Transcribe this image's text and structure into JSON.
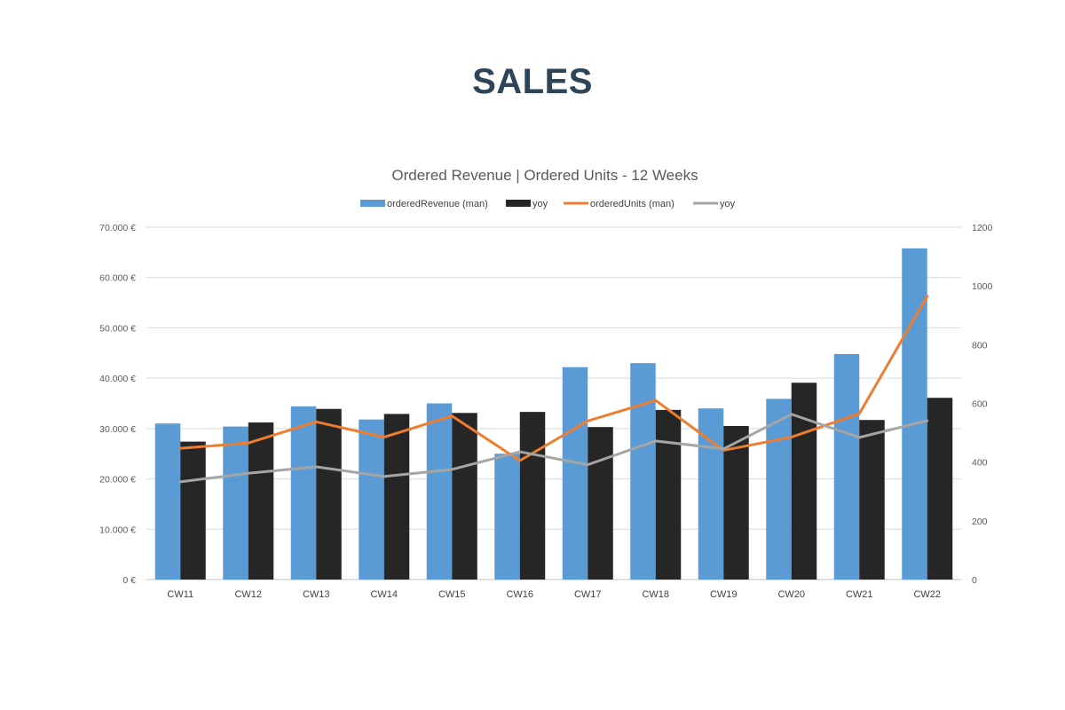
{
  "page": {
    "title": "SALES"
  },
  "chart_data": {
    "type": "bar",
    "title": "Ordered Revenue | Ordered Units - 12 Weeks",
    "categories": [
      "CW11",
      "CW12",
      "CW13",
      "CW14",
      "CW15",
      "CW16",
      "CW17",
      "CW18",
      "CW19",
      "CW20",
      "CW21",
      "CW22"
    ],
    "y_left": {
      "min": 0,
      "max": 70000,
      "step": 10000,
      "tick_labels": [
        "0 €",
        "10.000 €",
        "20.000 €",
        "30.000 €",
        "40.000 €",
        "50.000 €",
        "60.000 €",
        "70.000 €"
      ]
    },
    "y_right": {
      "min": 0,
      "max": 1200,
      "step": 200,
      "tick_labels": [
        "0",
        "200",
        "400",
        "600",
        "800",
        "1000",
        "1200"
      ]
    },
    "grid": true,
    "legend_position": "top",
    "series": [
      {
        "name": "orderedRevenue (man)",
        "kind": "bar",
        "axis": "left",
        "color": "#5b9bd5",
        "values": [
          31000,
          30400,
          34400,
          31800,
          35000,
          25000,
          42200,
          43000,
          34000,
          35900,
          44800,
          65800
        ]
      },
      {
        "name": "yoy",
        "kind": "bar",
        "axis": "left",
        "color": "#262626",
        "values": [
          27400,
          31200,
          33900,
          32900,
          33100,
          33300,
          30300,
          33700,
          30500,
          39100,
          31700,
          36100
        ]
      },
      {
        "name": "orderedUnits (man)",
        "kind": "line",
        "axis": "right",
        "color": "#ed7d31",
        "values": [
          447,
          465,
          537,
          485,
          557,
          405,
          540,
          610,
          440,
          485,
          565,
          965
        ]
      },
      {
        "name": "yoy",
        "kind": "line",
        "axis": "right",
        "color": "#a5a5a5",
        "values": [
          333,
          362,
          384,
          351,
          375,
          435,
          391,
          472,
          445,
          563,
          484,
          541
        ]
      }
    ]
  }
}
